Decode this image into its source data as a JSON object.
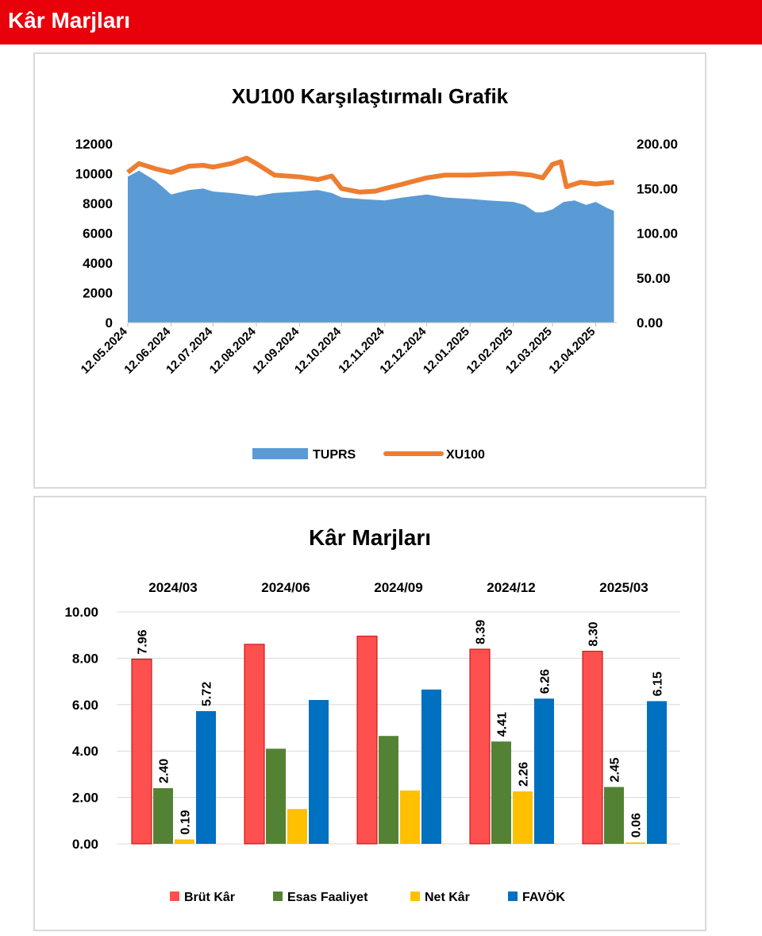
{
  "header": {
    "title": "Kâr Marjları"
  },
  "chart_data": [
    {
      "type": "area",
      "title": "XU100 Karşılaştırmalı  Grafik",
      "y_left": {
        "ticks": [
          "12000",
          "10000",
          "8000",
          "6000",
          "4000",
          "2000",
          "0"
        ],
        "ylim": [
          0,
          12000
        ]
      },
      "y_right": {
        "ticks": [
          "200.00",
          "150.00",
          "100.00",
          "50.00",
          "0.00"
        ],
        "ylim": [
          0,
          200
        ]
      },
      "x_ticks": [
        "12.05.2024",
        "12.06.2024",
        "12.07.2024",
        "12.08.2024",
        "12.09.2024",
        "12.10.2024",
        "12.11.2024",
        "12.12.2024",
        "12.01.2025",
        "12.02.2025",
        "12.03.2025",
        "12.04.2025"
      ],
      "series": [
        {
          "name": "TUPRS",
          "type": "area",
          "axis": "left",
          "color": "#5b9bd5",
          "x": [
            "2024-05-12",
            "2024-05-20",
            "2024-06-01",
            "2024-06-12",
            "2024-06-25",
            "2024-07-05",
            "2024-07-12",
            "2024-07-25",
            "2024-08-12",
            "2024-08-25",
            "2024-09-12",
            "2024-09-25",
            "2024-10-05",
            "2024-10-12",
            "2024-10-25",
            "2024-11-12",
            "2024-11-25",
            "2024-12-12",
            "2024-12-25",
            "2025-01-12",
            "2025-01-25",
            "2025-02-12",
            "2025-02-20",
            "2025-02-28",
            "2025-03-05",
            "2025-03-12",
            "2025-03-20",
            "2025-03-28",
            "2025-04-05",
            "2025-04-12",
            "2025-04-20",
            "2025-04-25"
          ],
          "values": [
            9800,
            10200,
            9500,
            8600,
            8900,
            9000,
            8800,
            8700,
            8500,
            8700,
            8800,
            8900,
            8700,
            8400,
            8300,
            8200,
            8400,
            8600,
            8400,
            8300,
            8200,
            8100,
            7900,
            7400,
            7400,
            7600,
            8100,
            8200,
            7900,
            8100,
            7700,
            7500
          ]
        },
        {
          "name": "XU100",
          "type": "line",
          "axis": "right",
          "color": "#ed7d31",
          "x": [
            "2024-05-12",
            "2024-05-20",
            "2024-06-01",
            "2024-06-12",
            "2024-06-25",
            "2024-07-05",
            "2024-07-12",
            "2024-07-25",
            "2024-08-05",
            "2024-08-12",
            "2024-08-25",
            "2024-09-12",
            "2024-09-25",
            "2024-10-05",
            "2024-10-12",
            "2024-10-25",
            "2024-11-05",
            "2024-11-12",
            "2024-11-25",
            "2024-12-12",
            "2024-12-25",
            "2025-01-12",
            "2025-01-25",
            "2025-02-12",
            "2025-02-25",
            "2025-03-05",
            "2025-03-12",
            "2025-03-18",
            "2025-03-22",
            "2025-04-01",
            "2025-04-12",
            "2025-04-25"
          ],
          "values": [
            168,
            178,
            172,
            168,
            175,
            176,
            174,
            178,
            184,
            178,
            165,
            163,
            160,
            164,
            150,
            146,
            147,
            150,
            155,
            162,
            165,
            165,
            166,
            167,
            165,
            162,
            177,
            180,
            152,
            157,
            155,
            157
          ]
        }
      ]
    },
    {
      "type": "bar",
      "title": "Kâr Marjları",
      "categories": [
        "2024/03",
        "2024/06",
        "2024/09",
        "2024/12",
        "2025/03"
      ],
      "ylim": [
        0,
        10
      ],
      "y_ticks": [
        "10.00",
        "8.00",
        "6.00",
        "4.00",
        "2.00",
        "0.00"
      ],
      "series": [
        {
          "name": "Brüt Kâr",
          "color": "#ff5050",
          "values": [
            7.96,
            8.6,
            8.95,
            8.39,
            8.3
          ],
          "labels": [
            "7.96",
            "",
            "",
            "8.39",
            "8.30"
          ]
        },
        {
          "name": "Esas Faaliyet",
          "color": "#548235",
          "values": [
            2.4,
            4.1,
            4.65,
            4.41,
            2.45
          ],
          "labels": [
            "2.40",
            "",
            "",
            "4.41",
            "2.45"
          ]
        },
        {
          "name": "Net Kâr",
          "color": "#ffc000",
          "values": [
            0.19,
            1.5,
            2.3,
            2.26,
            0.06
          ],
          "labels": [
            "0.19",
            "",
            "",
            "2.26",
            "0.06"
          ]
        },
        {
          "name": "FAVÖK",
          "color": "#0070c0",
          "values": [
            5.72,
            6.2,
            6.65,
            6.26,
            6.15
          ],
          "labels": [
            "5.72",
            "",
            "",
            "6.26",
            "6.15"
          ]
        }
      ]
    }
  ]
}
